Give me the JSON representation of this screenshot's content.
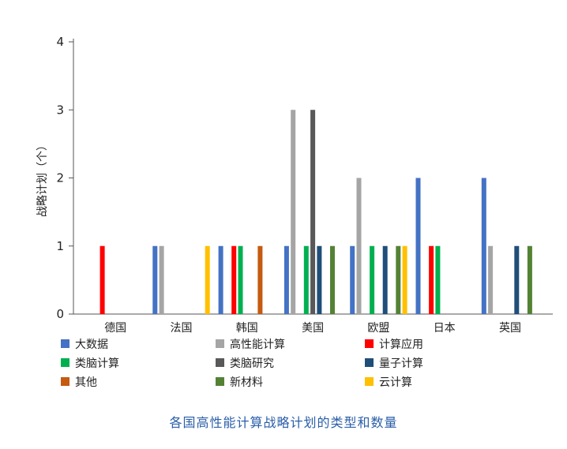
{
  "caption": "各国高性能计算战略计划的类型和数量",
  "chart_data": {
    "type": "bar",
    "ylabel": "战略计划（个）",
    "xlabel": "",
    "ylim": [
      0,
      4
    ],
    "yticks": [
      0,
      1,
      2,
      3,
      4
    ],
    "categories": [
      "德国",
      "法国",
      "韩国",
      "美国",
      "欧盟",
      "日本",
      "英国"
    ],
    "series": [
      {
        "name": "大数据",
        "color": "#4472c4",
        "values": [
          0,
          1,
          1,
          1,
          1,
          2,
          2
        ]
      },
      {
        "name": "高性能计算",
        "color": "#a5a5a5",
        "values": [
          0,
          1,
          0,
          3,
          2,
          0,
          1
        ]
      },
      {
        "name": "计算应用",
        "color": "#ff0000",
        "values": [
          1,
          0,
          1,
          0,
          0,
          1,
          0
        ]
      },
      {
        "name": "类脑计算",
        "color": "#00b050",
        "values": [
          0,
          0,
          1,
          1,
          1,
          1,
          0
        ]
      },
      {
        "name": "类脑研究",
        "color": "#595959",
        "values": [
          0,
          0,
          0,
          3,
          0,
          0,
          0
        ]
      },
      {
        "name": "量子计算",
        "color": "#1f4e79",
        "values": [
          0,
          0,
          0,
          1,
          1,
          0,
          1
        ]
      },
      {
        "name": "其他",
        "color": "#c55a11",
        "values": [
          0,
          0,
          1,
          0,
          0,
          0,
          0
        ]
      },
      {
        "name": "新材料",
        "color": "#548235",
        "values": [
          0,
          0,
          0,
          1,
          1,
          0,
          1
        ]
      },
      {
        "name": "云计算",
        "color": "#ffc000",
        "values": [
          0,
          1,
          0,
          0,
          1,
          0,
          0
        ]
      }
    ],
    "grid": false,
    "legend_position": "bottom"
  }
}
